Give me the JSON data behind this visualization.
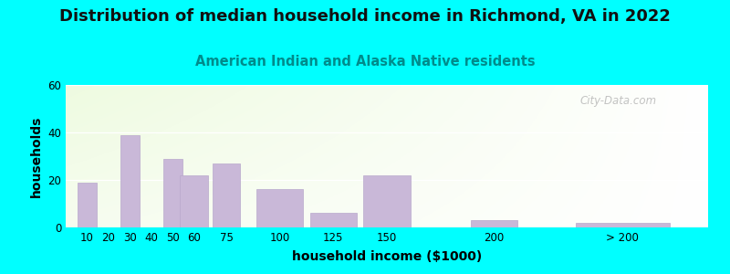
{
  "title": "Distribution of median household income in Richmond, VA in 2022",
  "subtitle": "American Indian and Alaska Native residents",
  "xlabel": "household income ($1000)",
  "ylabel": "households",
  "bar_labels": [
    "10",
    "20",
    "30",
    "40",
    "50",
    "60",
    "75",
    "100",
    "125",
    "150",
    "200",
    "> 200"
  ],
  "bar_values": [
    19,
    0,
    39,
    0,
    29,
    22,
    27,
    16,
    6,
    22,
    3,
    2
  ],
  "bar_widths": [
    10,
    10,
    10,
    10,
    10,
    15,
    15,
    25,
    25,
    25,
    25,
    50
  ],
  "bar_centers": [
    10,
    20,
    30,
    40,
    50,
    60,
    75,
    100,
    125,
    150,
    200,
    260
  ],
  "bar_color": "#c9b8d8",
  "bar_edge_color": "#b8a8cc",
  "bg_color": "#00ffff",
  "ylim": [
    0,
    60
  ],
  "yticks": [
    0,
    20,
    40,
    60
  ],
  "title_fontsize": 13,
  "subtitle_fontsize": 10.5,
  "axis_label_fontsize": 10,
  "tick_fontsize": 8.5,
  "watermark": "City-Data.com",
  "subtitle_color": "#008B8B",
  "title_color": "#111111"
}
